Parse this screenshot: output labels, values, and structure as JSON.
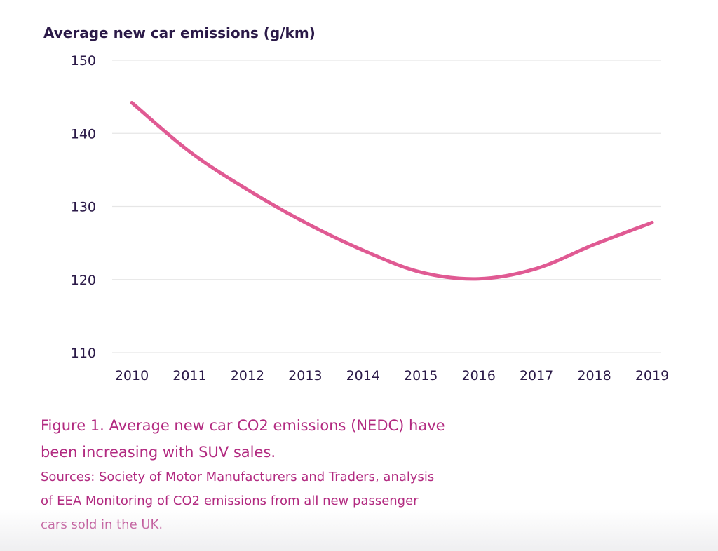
{
  "chart_data": {
    "type": "line",
    "title": "Average new car emissions (g/km)",
    "x": [
      2010,
      2011,
      2012,
      2013,
      2014,
      2015,
      2016,
      2017,
      2018,
      2019
    ],
    "categories": [
      "2010",
      "2011",
      "2012",
      "2013",
      "2014",
      "2015",
      "2016",
      "2017",
      "2018",
      "2019"
    ],
    "series": [
      {
        "values": [
          144.2,
          137.5,
          132.3,
          127.8,
          124,
          121,
          120.1,
          121.5,
          124.8,
          127.8
        ]
      }
    ],
    "yticks": [
      150,
      140,
      130,
      120,
      110
    ],
    "ylim": [
      110,
      150
    ],
    "xlabel": "",
    "ylabel": "",
    "grid": true,
    "legend": "none",
    "line_color": "#e05a93",
    "grid_color": "#e6e6e6",
    "text_color": "#2b1a48"
  },
  "caption": {
    "line1": "Figure 1. Average new car CO2 emissions (NEDC) have",
    "line2": "been increasing with SUV sales.",
    "sources1": "Sources: Society of Motor Manufacturers and Traders, analysis",
    "sources2": "of EEA Monitoring of CO2 emissions from all new passenger",
    "sources3": "cars sold in the UK."
  },
  "colors": {
    "caption": "#b22a80"
  }
}
